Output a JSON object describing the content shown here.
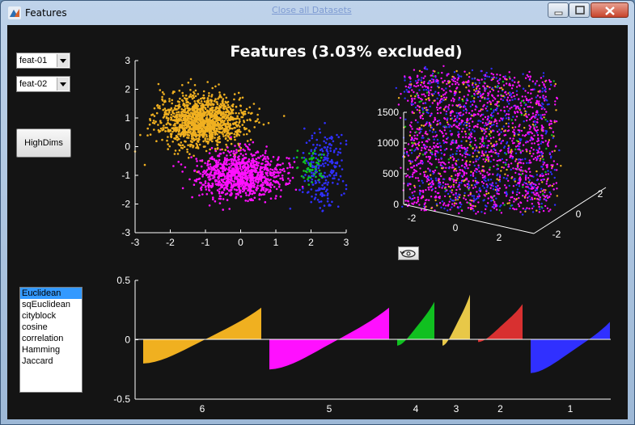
{
  "window": {
    "title": "Features",
    "background_link": "Close all Datasets"
  },
  "controls": {
    "x_feature": "feat-01",
    "y_feature": "feat-02",
    "highdims_label": "HighDims",
    "distance_metrics": [
      "Euclidean",
      "sqEuclidean",
      "cityblock",
      "cosine",
      "correlation",
      "Hamming",
      "Jaccard"
    ],
    "selected_metric": "Euclidean"
  },
  "figure": {
    "title": "Features (3.03% excluded)",
    "background": "#141414"
  },
  "colors": {
    "class6": "#f0b020",
    "class5": "#ff10ff",
    "class4": "#10c020",
    "class3": "#e8c848",
    "class2": "#d83030",
    "class1": "#3030ff"
  },
  "chart_data": [
    {
      "type": "scatter",
      "name": "2D features",
      "xlim": [
        -3,
        3
      ],
      "ylim": [
        -3,
        3
      ],
      "xticks": [
        "-3",
        "-2",
        "-1",
        "0",
        "1",
        "2",
        "3"
      ],
      "yticks": [
        "3",
        "2",
        "1",
        "0",
        "-1",
        "-2",
        "-3"
      ],
      "clusters": [
        {
          "class": "6",
          "color": "#f0b020",
          "center": [
            -1.1,
            0.9
          ],
          "spread": [
            1.0,
            0.55
          ]
        },
        {
          "class": "5",
          "color": "#ff10ff",
          "center": [
            0.0,
            -1.0
          ],
          "spread": [
            1.0,
            0.5
          ]
        },
        {
          "class": "1",
          "color": "#3030ff",
          "center": [
            2.3,
            -0.8
          ],
          "spread": [
            0.5,
            0.9
          ]
        },
        {
          "class": "4",
          "color": "#10c020",
          "center": [
            2.0,
            -0.8
          ],
          "spread": [
            0.3,
            0.4
          ]
        }
      ]
    },
    {
      "type": "scatter",
      "name": "3D features",
      "zticks": [
        "0",
        "500",
        "1000",
        "1500"
      ],
      "xticks": [
        "-2",
        "0",
        "2"
      ],
      "yticks": [
        "-2",
        "0",
        "2"
      ],
      "groups": [
        "#ff10ff",
        "#3030ff",
        "#f0b020",
        "#10c020"
      ]
    },
    {
      "type": "bar",
      "name": "silhouette",
      "ylim": [
        -0.5,
        0.5
      ],
      "yticks": [
        "0.5",
        "0",
        "-0.5"
      ],
      "clusters": [
        {
          "label": "6",
          "color": "#f0b020",
          "min": -0.2,
          "max": 0.27
        },
        {
          "label": "5",
          "color": "#ff10ff",
          "min": -0.25,
          "max": 0.27
        },
        {
          "label": "4",
          "color": "#10c020",
          "min": -0.05,
          "max": 0.32
        },
        {
          "label": "3",
          "color": "#e8c848",
          "min": -0.05,
          "max": 0.38
        },
        {
          "label": "2",
          "color": "#d83030",
          "min": -0.02,
          "max": 0.3
        },
        {
          "label": "1",
          "color": "#3030ff",
          "min": -0.28,
          "max": 0.15
        }
      ]
    }
  ]
}
